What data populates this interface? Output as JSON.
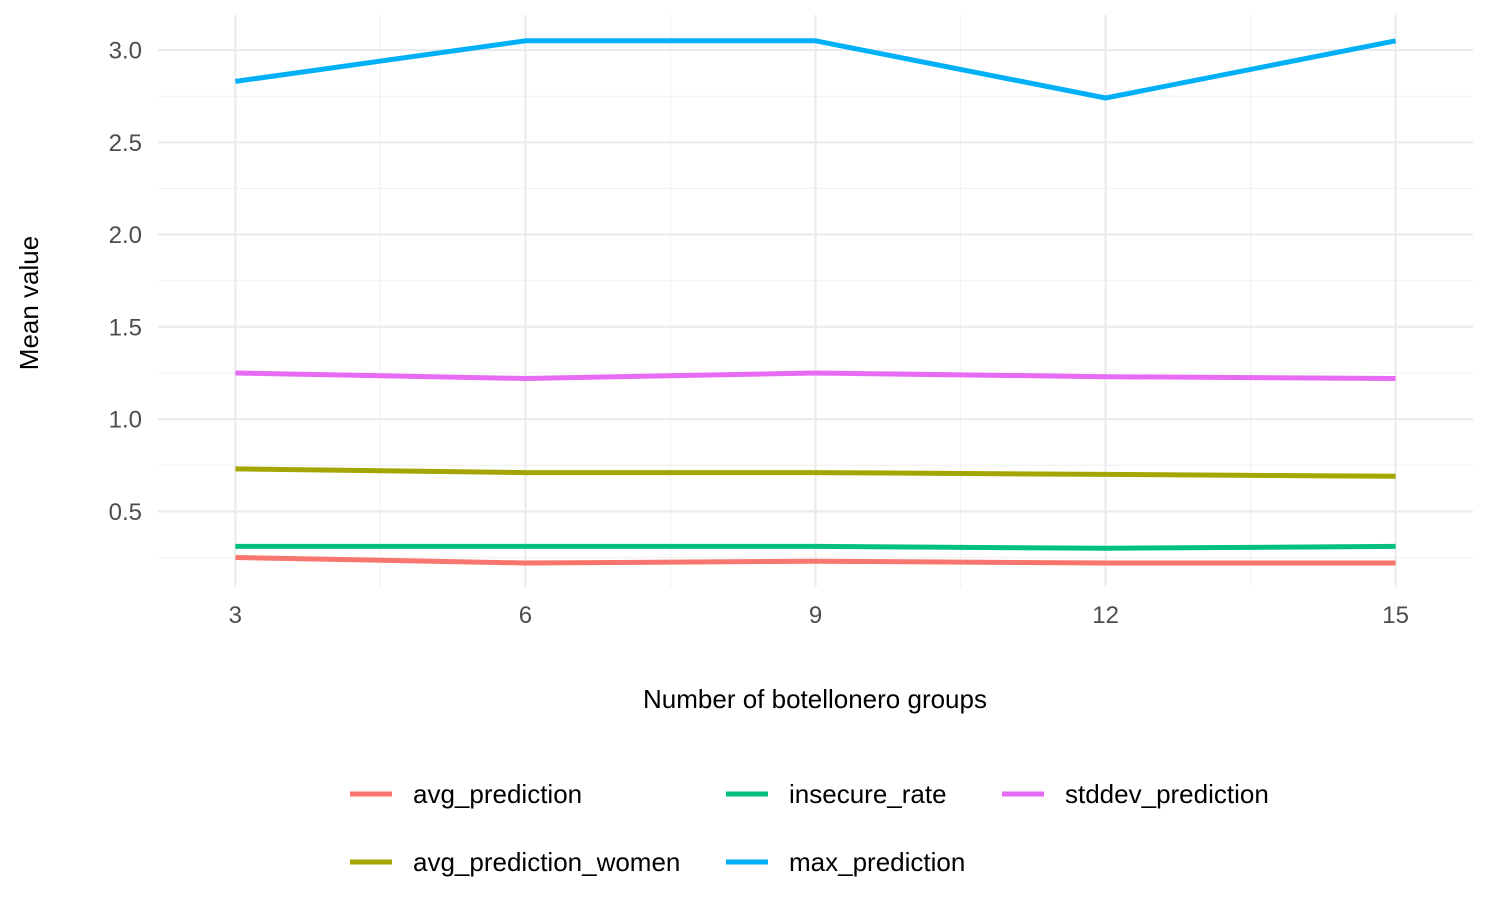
{
  "chart_data": {
    "type": "line",
    "title": "",
    "xlabel": "Number of botellonero groups",
    "ylabel": "Mean value",
    "x": [
      3,
      6,
      9,
      12,
      15
    ],
    "xticks": [
      3,
      6,
      9,
      12,
      15
    ],
    "xtick_labels": [
      "3",
      "6",
      "9",
      "12",
      "15"
    ],
    "yticks": [
      0.5,
      1.0,
      1.5,
      2.0,
      2.5,
      3.0
    ],
    "ytick_labels": [
      "0.5",
      "1.0",
      "1.5",
      "2.0",
      "2.5",
      "3.0"
    ],
    "xlim": [
      2.2,
      15.8
    ],
    "ylim": [
      0.09,
      3.19
    ],
    "grid": true,
    "legend_position": "bottom",
    "series": [
      {
        "name": "avg_prediction",
        "color": "#F8766D",
        "values": [
          0.25,
          0.22,
          0.23,
          0.22,
          0.22
        ]
      },
      {
        "name": "avg_prediction_women",
        "color": "#A3A500",
        "values": [
          0.73,
          0.71,
          0.71,
          0.7,
          0.69
        ]
      },
      {
        "name": "insecure_rate",
        "color": "#00BF7D",
        "values": [
          0.31,
          0.31,
          0.31,
          0.3,
          0.31
        ]
      },
      {
        "name": "max_prediction",
        "color": "#00B0F6",
        "values": [
          2.83,
          3.05,
          3.05,
          2.74,
          3.05
        ]
      },
      {
        "name": "stddev_prediction",
        "color": "#E76BF3",
        "values": [
          1.25,
          1.22,
          1.25,
          1.23,
          1.22
        ]
      }
    ]
  }
}
